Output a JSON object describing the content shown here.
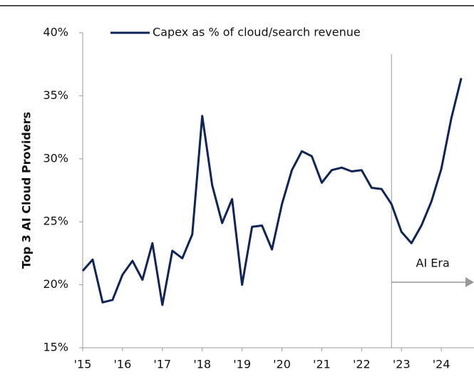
{
  "chart_data": {
    "type": "line",
    "y_axis_label": "Top 3 AI Cloud Providers",
    "x": [
      2015,
      2015.25,
      2015.5,
      2015.75,
      2016,
      2016.25,
      2016.5,
      2016.75,
      2017,
      2017.25,
      2017.5,
      2017.75,
      2018,
      2018.25,
      2018.5,
      2018.75,
      2019,
      2019.25,
      2019.5,
      2019.75,
      2020,
      2020.25,
      2020.5,
      2020.75,
      2021,
      2021.25,
      2021.5,
      2021.75,
      2022,
      2022.25,
      2022.5,
      2022.75,
      2023,
      2023.25,
      2023.5,
      2023.75,
      2024,
      2024.25,
      2024.5
    ],
    "series": [
      {
        "name": "Capex as % of cloud/search revenue",
        "color": "#0f2557",
        "values": [
          21.1,
          22.0,
          18.6,
          18.8,
          20.8,
          21.9,
          20.4,
          23.3,
          18.4,
          22.7,
          22.1,
          24.0,
          33.4,
          27.9,
          24.9,
          26.8,
          20.0,
          24.6,
          24.7,
          22.8,
          26.4,
          29.1,
          30.6,
          30.2,
          28.1,
          29.1,
          29.3,
          29.0,
          29.1,
          27.7,
          27.6,
          26.4,
          24.2,
          23.3,
          24.7,
          26.6,
          29.2,
          33.2,
          36.4
        ]
      }
    ],
    "xlim": [
      2015,
      2024.82
    ],
    "xticks": [
      {
        "value": 2015,
        "label": "'15"
      },
      {
        "value": 2016,
        "label": "'16"
      },
      {
        "value": 2017,
        "label": "'17"
      },
      {
        "value": 2018,
        "label": "'18"
      },
      {
        "value": 2019,
        "label": "'19"
      },
      {
        "value": 2020,
        "label": "'20"
      },
      {
        "value": 2021,
        "label": "'21"
      },
      {
        "value": 2022,
        "label": "'22"
      },
      {
        "value": 2023,
        "label": "'23"
      },
      {
        "value": 2024,
        "label": "'24"
      }
    ],
    "ylim": [
      15,
      40
    ],
    "yticks": [
      {
        "value": 15,
        "label": "15%"
      },
      {
        "value": 20,
        "label": "20%"
      },
      {
        "value": 25,
        "label": "25%"
      },
      {
        "value": 30,
        "label": "30%"
      },
      {
        "value": 35,
        "label": "35%"
      },
      {
        "value": 40,
        "label": "40%"
      }
    ],
    "annotation": {
      "text": "AI Era",
      "x": 2022.75
    }
  }
}
